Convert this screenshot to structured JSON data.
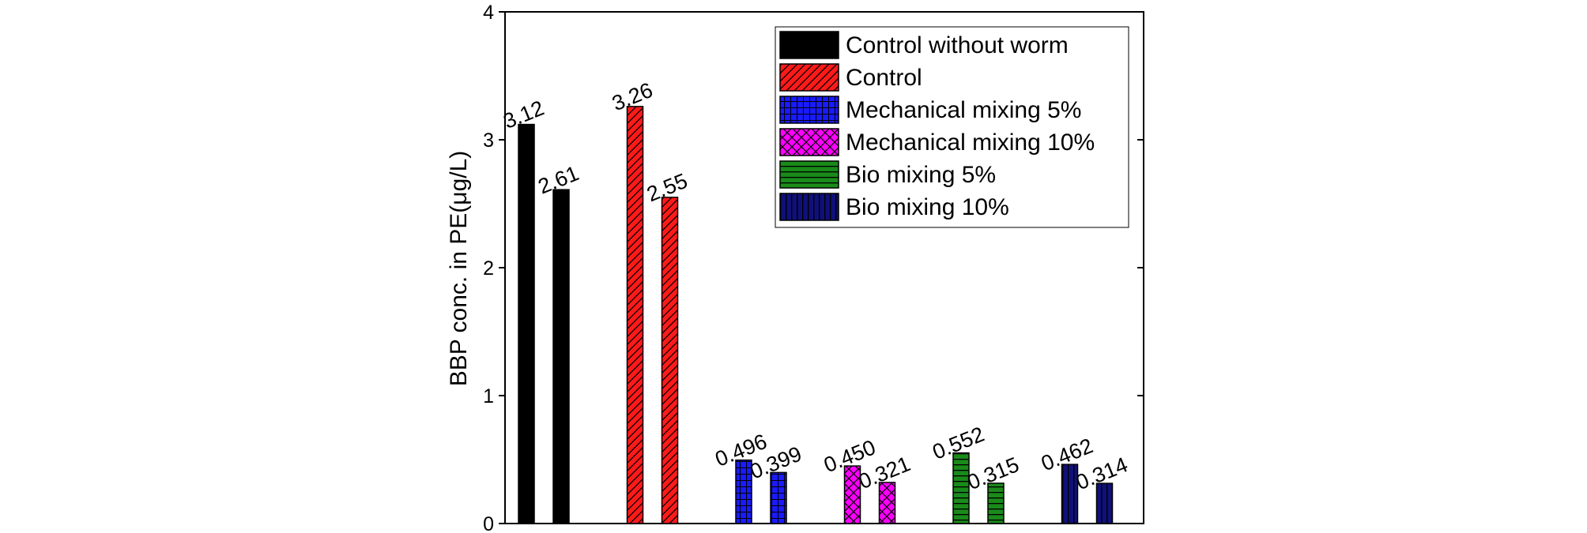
{
  "chart_data": {
    "type": "bar",
    "title": "",
    "xlabel": "",
    "ylabel": "BBP conc. in PE(μg/L)",
    "ylim": [
      0,
      4
    ],
    "yticks": [
      0,
      1,
      2,
      3,
      4
    ],
    "grid": false,
    "legend_position": "top-right",
    "series": [
      {
        "name": "Control without worm",
        "color": "#000000",
        "pattern": "solid",
        "values": [
          3.12,
          2.61
        ],
        "labels": [
          "3.12",
          "2.61"
        ]
      },
      {
        "name": "Control",
        "color": "#ff1a1a",
        "pattern": "diagonal",
        "values": [
          3.26,
          2.55
        ],
        "labels": [
          "3.26",
          "2.55"
        ]
      },
      {
        "name": "Mechanical mixing 5%",
        "color": "#1a1aff",
        "pattern": "grid",
        "values": [
          0.496,
          0.399
        ],
        "labels": [
          "0.496",
          "0.399"
        ]
      },
      {
        "name": "Mechanical mixing 10%",
        "color": "#ff00ff",
        "pattern": "crosshatch",
        "values": [
          0.45,
          0.321
        ],
        "labels": [
          "0.450",
          "0.321"
        ]
      },
      {
        "name": "Bio mixing 5%",
        "color": "#1a8a1a",
        "pattern": "horizontal",
        "values": [
          0.552,
          0.315
        ],
        "labels": [
          "0.552",
          "0.315"
        ]
      },
      {
        "name": "Bio mixing 10%",
        "color": "#10107a",
        "pattern": "vertical",
        "values": [
          0.462,
          0.314
        ],
        "labels": [
          "0.462",
          "0.314"
        ]
      }
    ]
  }
}
